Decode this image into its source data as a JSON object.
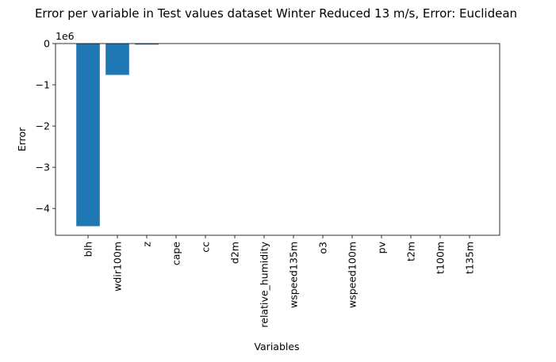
{
  "chart_data": {
    "type": "bar",
    "title": "Error per variable in Test values dataset Winter Reduced 13 m/s, Error: Euclidean",
    "xlabel": "Variables",
    "ylabel": "Error",
    "y_offset_label": "1e6",
    "y_scale": 1000000,
    "categories": [
      "blh",
      "wdir100m",
      "z",
      "cape",
      "cc",
      "d2m",
      "relative_humidity",
      "wspeed135m",
      "o3",
      "wspeed100m",
      "pv",
      "t2m",
      "t100m",
      "t135m"
    ],
    "values": [
      -4430000,
      -760000,
      -25000,
      0,
      0,
      0,
      0,
      0,
      0,
      0,
      0,
      0,
      0,
      0
    ],
    "ylim": [
      -4650000,
      0
    ],
    "yticks": [
      0,
      -1000000,
      -2000000,
      -3000000,
      -4000000
    ],
    "ytick_labels": [
      "0",
      "−1",
      "−2",
      "−3",
      "−4"
    ],
    "bar_color": "#1f77b4",
    "grid": false,
    "legend": null
  }
}
